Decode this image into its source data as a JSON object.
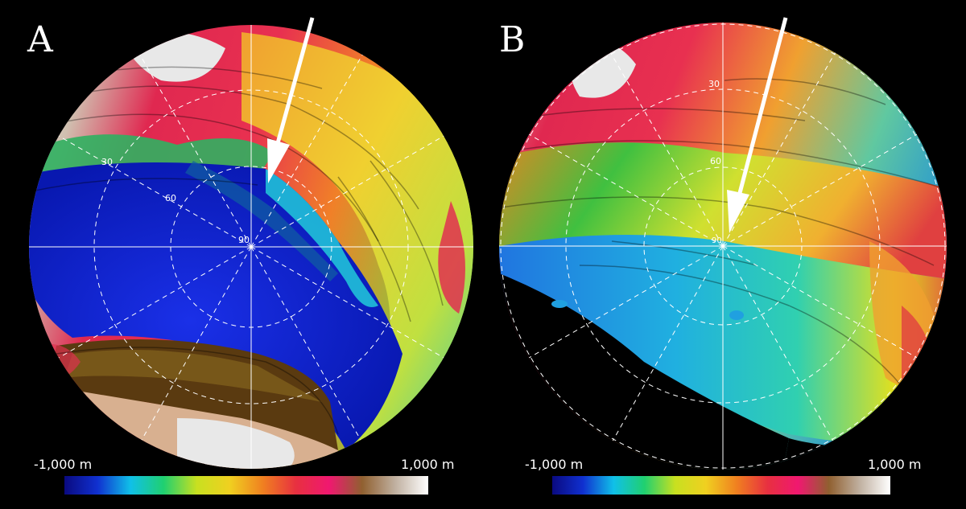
{
  "panels": [
    {
      "letter": "A",
      "scale_min": "-1,000 m",
      "scale_max": "1,000 m",
      "grid_labels": [
        "30",
        "60",
        "90"
      ]
    },
    {
      "letter": "B",
      "scale_min": "-1,000 m",
      "scale_max": "1,000 m",
      "grid_labels": [
        "30",
        "60",
        "90"
      ]
    }
  ],
  "colorbar_stops": [
    "#0a0a80",
    "#1030d0",
    "#10c0e8",
    "#20d070",
    "#c8e020",
    "#f0d020",
    "#f08020",
    "#e83040",
    "#f01870",
    "#906030",
    "#c0b0a0",
    "#ffffff"
  ],
  "palette": {
    "deep": "#0a22d8",
    "mid_blue": "#2080e0",
    "cyan": "#20c8d8",
    "green": "#30c060",
    "yellow": "#e0d020",
    "orange": "#f08020",
    "red": "#e02840",
    "magenta": "#e81860",
    "brown": "#5a3a10",
    "tan": "#d8b090",
    "white": "#e8e8e8"
  }
}
